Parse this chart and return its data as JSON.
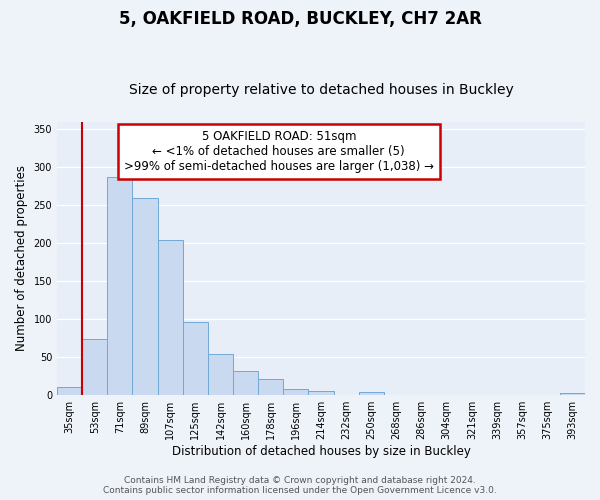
{
  "title": "5, OAKFIELD ROAD, BUCKLEY, CH7 2AR",
  "subtitle": "Size of property relative to detached houses in Buckley",
  "xlabel": "Distribution of detached houses by size in Buckley",
  "ylabel": "Number of detached properties",
  "bar_labels": [
    "35sqm",
    "53sqm",
    "71sqm",
    "89sqm",
    "107sqm",
    "125sqm",
    "142sqm",
    "160sqm",
    "178sqm",
    "196sqm",
    "214sqm",
    "232sqm",
    "250sqm",
    "268sqm",
    "286sqm",
    "304sqm",
    "321sqm",
    "339sqm",
    "357sqm",
    "375sqm",
    "393sqm"
  ],
  "bar_values": [
    10,
    73,
    287,
    260,
    204,
    96,
    54,
    31,
    21,
    8,
    5,
    0,
    4,
    0,
    0,
    0,
    0,
    0,
    0,
    0,
    2
  ],
  "bar_color": "#c9d9f0",
  "bar_edge_color": "#6fa8d6",
  "annotation_line1": "5 OAKFIELD ROAD: 51sqm",
  "annotation_line2": "← <1% of detached houses are smaller (5)",
  "annotation_line3": ">99% of semi-detached houses are larger (1,038) →",
  "annotation_box_edge_color": "#cc0000",
  "annotation_box_facecolor": "#ffffff",
  "marker_line_color": "#cc0000",
  "ylim": [
    0,
    360
  ],
  "yticks": [
    0,
    50,
    100,
    150,
    200,
    250,
    300,
    350
  ],
  "footer_line1": "Contains HM Land Registry data © Crown copyright and database right 2024.",
  "footer_line2": "Contains public sector information licensed under the Open Government Licence v3.0.",
  "bg_color": "#eef2f9",
  "plot_bg_color": "#e8eef8",
  "grid_color": "#ffffff",
  "title_fontsize": 12,
  "subtitle_fontsize": 10,
  "axis_label_fontsize": 8.5,
  "tick_fontsize": 7,
  "footer_fontsize": 6.5,
  "annotation_fontsize": 8.5
}
